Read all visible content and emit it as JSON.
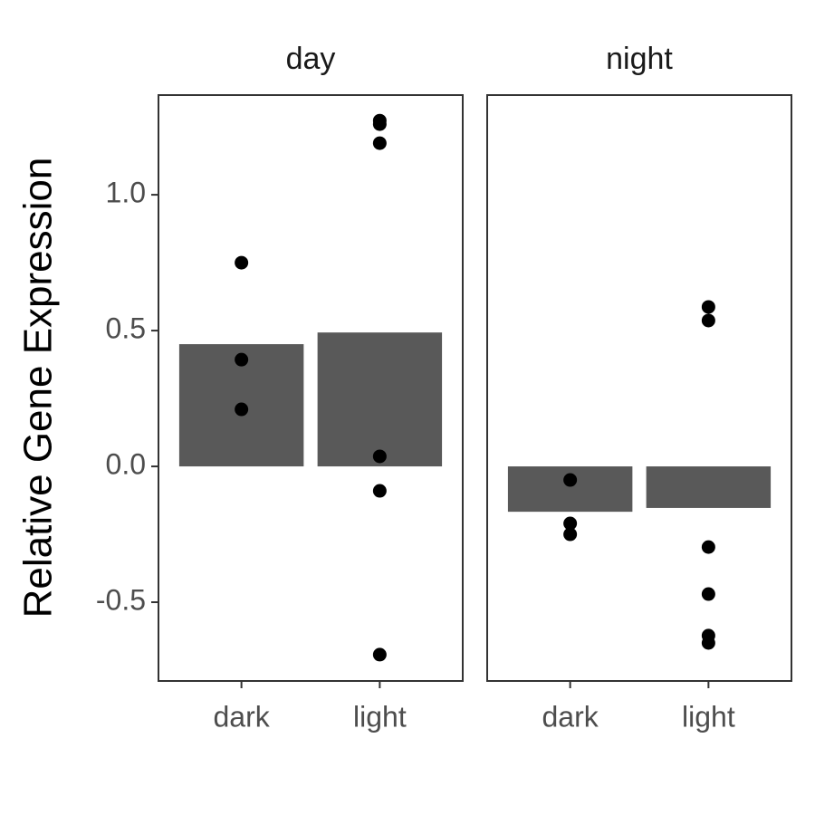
{
  "chart_data": [
    {
      "type": "bar",
      "title": "day",
      "ylabel": "Relative Gene Expression",
      "categories": [
        "dark",
        "light"
      ],
      "values": [
        0.45,
        0.493
      ],
      "color": "#595959",
      "points": {
        "color": "#000000",
        "values": [
          [
            0.75,
            0.393,
            0.21
          ],
          [
            1.273,
            1.26,
            1.19,
            0.037,
            -0.09,
            -0.693
          ]
        ]
      },
      "ylim": [
        -0.79,
        1.367
      ],
      "yticks": [
        {
          "value": -0.5,
          "label": "-0.5"
        },
        {
          "value": 0,
          "label": "0.0"
        },
        {
          "value": 0.5,
          "label": "0.5"
        },
        {
          "value": 1,
          "label": "1.0"
        }
      ]
    },
    {
      "type": "bar",
      "title": "night",
      "categories": [
        "dark",
        "light"
      ],
      "values": [
        -0.167,
        -0.153
      ],
      "color": "#595959",
      "points": {
        "color": "#000000",
        "values": [
          [
            -0.05,
            -0.21,
            -0.25
          ],
          [
            0.587,
            0.537,
            -0.297,
            -0.47,
            -0.623,
            -0.65
          ]
        ]
      },
      "ylim": [
        -0.79,
        1.367
      ]
    }
  ]
}
